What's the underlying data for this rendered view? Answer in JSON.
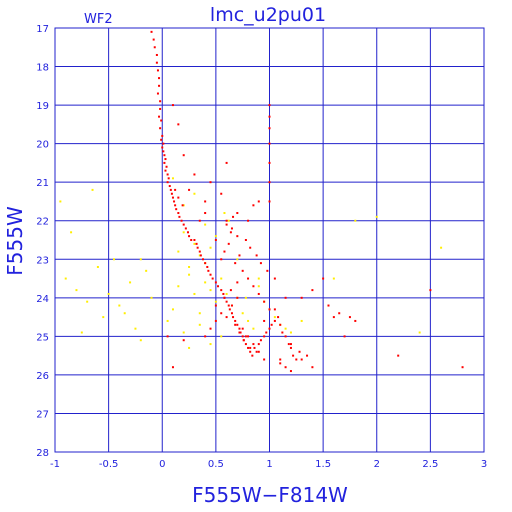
{
  "chart_data": {
    "type": "scatter",
    "title": "lmc_u2pu01",
    "panel_label": "WF2",
    "xlabel": "F555W−F814W",
    "ylabel": "F555W",
    "xlim": [
      -1,
      3
    ],
    "ylim": [
      28,
      17
    ],
    "y_inverted": true,
    "grid": true,
    "xticks": [
      -1,
      -0.5,
      0,
      0.5,
      1,
      1.5,
      2,
      2.5,
      3
    ],
    "xtick_labels": [
      "-1",
      "-0.5",
      "0",
      "0.5",
      "1",
      "1.5",
      "2",
      "2.5",
      "3"
    ],
    "yticks": [
      17,
      18,
      19,
      20,
      21,
      22,
      23,
      24,
      25,
      26,
      27,
      28
    ],
    "ytick_labels": [
      "17",
      "18",
      "19",
      "20",
      "21",
      "22",
      "23",
      "24",
      "25",
      "26",
      "27",
      "28"
    ],
    "series": [
      {
        "color": "#ff0000",
        "marker_size": 2,
        "x": [
          -0.1,
          -0.08,
          -0.07,
          -0.05,
          -0.05,
          -0.04,
          -0.03,
          -0.03,
          -0.04,
          -0.02,
          -0.02,
          -0.03,
          -0.01,
          -0.02,
          0,
          -0.01,
          0.01,
          0,
          0.01,
          0.02,
          0.03,
          0.02,
          0.04,
          0.03,
          0.05,
          0.06,
          0.05,
          0.07,
          0.08,
          0.09,
          0.1,
          0.11,
          0.12,
          0.13,
          0.12,
          0.15,
          0.16,
          0.15,
          0.18,
          0.2,
          0.19,
          0.22,
          0.24,
          0.25,
          0.27,
          0.3,
          0.32,
          0.33,
          0.35,
          0.36,
          0.38,
          0.4,
          0.42,
          0.43,
          0.45,
          0.47,
          0.5,
          0.52,
          0.55,
          0.57,
          0.58,
          0.6,
          0.62,
          0.63,
          0.65,
          0.66,
          0.68,
          0.7,
          0.72,
          0.73,
          0.75,
          0.76,
          0.78,
          0.8,
          0.82,
          0.84,
          0.86,
          0.88,
          0.9,
          0.92,
          0.95,
          0.97,
          1.0,
          1.02,
          1.05,
          1.08,
          1.1,
          1.12,
          1.15,
          1.18,
          1.2,
          1.22,
          1.25,
          1.28,
          1.3,
          1.35,
          1.4,
          0.6,
          0.65,
          0.7,
          0.62,
          0.58,
          0.55,
          0.72,
          0.68,
          0.75,
          0.8,
          0.85,
          0.9,
          0.95,
          1.0,
          0.7,
          0.66,
          0.6,
          0.64,
          0.78,
          0.82,
          0.88,
          0.92,
          0.98,
          1.05,
          0.75,
          0.8,
          0.85,
          0.9,
          0.95,
          1.1,
          1.15,
          1.2,
          0.7,
          0.65,
          0.55,
          0.5,
          0.45,
          0.4,
          0.6,
          0.68,
          0.72,
          0.76,
          0.7,
          0.64,
          0.58,
          0.5,
          0.9,
          1.0,
          1.0,
          1.0,
          1.0,
          1.0,
          1.0,
          1.0,
          0.6,
          0.2,
          0.3,
          0.25,
          0.45,
          0.55,
          0.15,
          0.1,
          0.35,
          0.4,
          0.5,
          1.3,
          1.4,
          1.5,
          1.6,
          1.7,
          1.8,
          2.2,
          2.5,
          2.8,
          1.2,
          1.1,
          0.8,
          0.85,
          0.4,
          0.1,
          0.2,
          0.05,
          1.55,
          1.65,
          1.75,
          0.95,
          1.05,
          1.15,
          0.78,
          0.82
        ],
        "y": [
          17.1,
          17.3,
          17.5,
          17.7,
          17.9,
          18.1,
          18.3,
          18.5,
          18.7,
          18.9,
          19.1,
          19.3,
          19.4,
          19.6,
          19.8,
          19.9,
          20.0,
          20.1,
          20.2,
          20.3,
          20.4,
          20.5,
          20.6,
          20.7,
          20.8,
          20.9,
          21.0,
          21.1,
          21.2,
          21.3,
          21.4,
          21.5,
          21.6,
          21.7,
          21.2,
          21.8,
          21.9,
          21.4,
          22.0,
          22.1,
          21.6,
          22.2,
          22.3,
          22.4,
          22.5,
          22.5,
          22.6,
          22.7,
          22.8,
          22.9,
          23.0,
          23.1,
          23.2,
          23.3,
          23.4,
          23.5,
          23.6,
          23.7,
          23.8,
          23.9,
          24.0,
          24.1,
          24.2,
          24.3,
          24.4,
          24.5,
          24.6,
          24.7,
          24.8,
          24.9,
          25.0,
          25.1,
          25.2,
          25.3,
          25.4,
          25.5,
          25.3,
          25.4,
          25.2,
          25.1,
          25.0,
          24.9,
          24.8,
          24.7,
          24.6,
          24.5,
          24.7,
          24.9,
          25.0,
          25.2,
          25.3,
          25.5,
          25.6,
          25.4,
          25.6,
          25.5,
          25.8,
          22.0,
          22.2,
          22.4,
          22.6,
          22.8,
          23.0,
          22.9,
          23.1,
          23.3,
          23.5,
          23.7,
          23.9,
          24.1,
          24.3,
          21.8,
          21.9,
          22.1,
          22.3,
          22.5,
          22.7,
          22.9,
          23.1,
          23.3,
          23.5,
          24.8,
          25.0,
          25.2,
          25.4,
          25.6,
          25.7,
          25.8,
          25.9,
          24.0,
          24.2,
          24.4,
          24.6,
          24.8,
          25.0,
          24.5,
          24.7,
          24.9,
          25.1,
          23.6,
          23.8,
          24.0,
          24.2,
          21.5,
          19.0,
          19.3,
          19.6,
          20.0,
          20.5,
          21.0,
          21.5,
          20.5,
          20.3,
          20.8,
          21.2,
          21.0,
          21.3,
          19.5,
          19.0,
          22.0,
          21.5,
          22.5,
          24.0,
          23.8,
          23.5,
          24.5,
          25.0,
          24.6,
          25.5,
          23.8,
          25.8,
          25.2,
          25.6,
          22.0,
          21.6,
          21.8,
          25.8,
          25.1,
          25.0,
          24.2,
          24.4,
          24.5,
          24.6,
          24.3,
          24.0,
          25.0,
          25.3
        ]
      },
      {
        "color": "#ffee00",
        "marker_size": 2,
        "x": [
          -0.9,
          -0.8,
          -0.7,
          -0.6,
          -0.55,
          -0.5,
          -0.45,
          -0.4,
          -0.3,
          -0.25,
          -0.2,
          -0.15,
          -0.1,
          0.05,
          0.1,
          0.15,
          0.2,
          0.25,
          0.3,
          0.35,
          0.4,
          0.45,
          0.5,
          0.3,
          0.35,
          0.25,
          0.2,
          0.15,
          0.4,
          0.45,
          0.5,
          0.55,
          0.6,
          0.65,
          0.7,
          0.75,
          0.8,
          0.85,
          0.9,
          0.95,
          1.0,
          1.05,
          1.1,
          1.2,
          1.3,
          1.6,
          1.8,
          2.0,
          2.4,
          2.6,
          0.2,
          0.3,
          0.4,
          0.1,
          -0.2,
          -0.35,
          -0.65,
          -0.75,
          -0.85,
          -0.95,
          0.55,
          0.45,
          0.35,
          0.25,
          0.62,
          0.58,
          0.7,
          0.78,
          0.9,
          1.15
        ],
        "y": [
          23.5,
          23.8,
          24.1,
          23.2,
          24.5,
          23.9,
          23.0,
          24.2,
          23.6,
          24.8,
          25.1,
          23.3,
          24.0,
          24.6,
          24.3,
          23.7,
          24.9,
          23.4,
          23.9,
          24.4,
          23.1,
          22.7,
          22.4,
          22.6,
          22.9,
          23.2,
          22.3,
          22.8,
          23.6,
          23.8,
          24.1,
          23.5,
          23.9,
          24.2,
          24.0,
          24.4,
          24.6,
          24.8,
          23.7,
          24.1,
          24.3,
          24.5,
          24.7,
          24.9,
          24.6,
          23.5,
          22.0,
          21.9,
          24.9,
          22.7,
          21.6,
          21.3,
          22.1,
          20.9,
          23.0,
          24.4,
          21.2,
          24.9,
          22.3,
          21.5,
          25.0,
          25.2,
          24.7,
          25.3,
          22.0,
          21.8,
          23.0,
          24.0,
          23.5,
          24.8
        ]
      }
    ]
  }
}
